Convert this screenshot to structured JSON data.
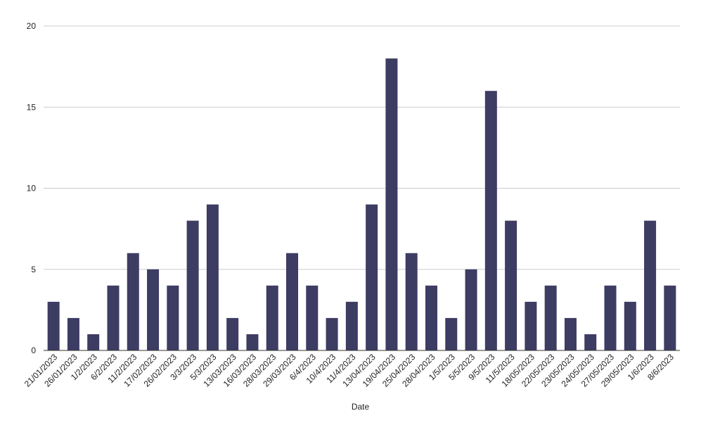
{
  "chart_data": {
    "type": "bar",
    "title": "",
    "xlabel": "Date",
    "ylabel": "",
    "ylim": [
      0,
      20
    ],
    "yticks": [
      0,
      5,
      10,
      15,
      20
    ],
    "grid": true,
    "bar_color": "#3d3c63",
    "categories": [
      "21/01/2023",
      "26/01/2023",
      "1/2/2023",
      "6/2/2023",
      "11/2/2023",
      "17/02/2023",
      "26/02/2023",
      "3/3/2023",
      "5/3/2023",
      "13/03/2023",
      "16/03/2023",
      "28/03/2023",
      "29/03/2023",
      "6/4/2023",
      "10/4/2023",
      "11/4/2023",
      "13/04/2023",
      "19/04/2023",
      "25/04/2023",
      "28/04/2023",
      "1/5/2023",
      "5/5/2023",
      "9/5/2023",
      "11/5/2023",
      "18/05/2023",
      "22/05/2023",
      "23/05/2023",
      "24/05/2023",
      "27/05/2023",
      "29/05/2023",
      "1/6/2023",
      "8/6/2023"
    ],
    "values": [
      3,
      2,
      1,
      4,
      6,
      5,
      4,
      8,
      9,
      2,
      1,
      4,
      6,
      4,
      2,
      3,
      9,
      18,
      6,
      4,
      2,
      5,
      16,
      8,
      3,
      4,
      2,
      1,
      4,
      3,
      8,
      4
    ]
  }
}
